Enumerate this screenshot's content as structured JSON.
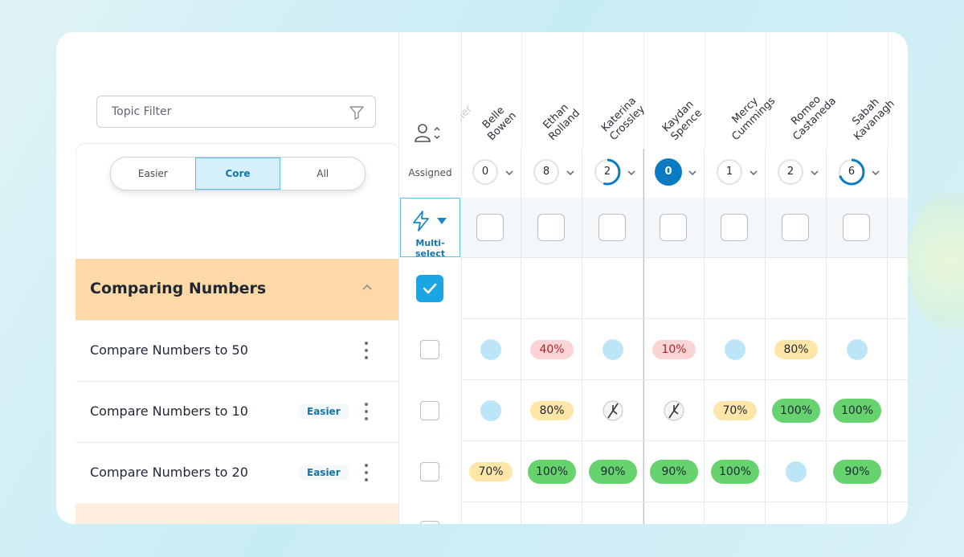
{
  "filter": {
    "placeholder": "Topic Filter"
  },
  "difficulty_tabs": [
    "Easier",
    "Core",
    "All"
  ],
  "assigned_column": {
    "label": "Assigned",
    "multi_select_label": "Multi-select"
  },
  "partial_student": "...her",
  "students": [
    {
      "name_line1": "Belle",
      "name_line2": "Bowen",
      "count": "0",
      "progress": 0
    },
    {
      "name_line1": "Ethan",
      "name_line2": "Rolland",
      "count": "8",
      "progress": 0
    },
    {
      "name_line1": "Katerina",
      "name_line2": "Crossley",
      "count": "2",
      "progress": 0.55
    },
    {
      "name_line1": "Kaydan",
      "name_line2": "Spence",
      "count": "0",
      "progress": 1
    },
    {
      "name_line1": "Mercy",
      "name_line2": "Cummings",
      "count": "1",
      "progress": 0
    },
    {
      "name_line1": "Romeo",
      "name_line2": "Castaneda",
      "count": "2",
      "progress": 0
    },
    {
      "name_line1": "Sabah",
      "name_line2": "Kavanagh",
      "count": "6",
      "progress": 0.7
    }
  ],
  "group": {
    "title": "Comparing Numbers"
  },
  "topics": [
    {
      "name": "Compare Numbers to 50",
      "badge": "",
      "cells": [
        "dot",
        "40%",
        "dot",
        "10%",
        "dot",
        "80%",
        "dot"
      ],
      "kinds": [
        "dot",
        "red",
        "dot",
        "red",
        "dot",
        "yellow",
        "dot"
      ]
    },
    {
      "name": "Compare Numbers to 10",
      "badge": "Easier",
      "cells": [
        "dot",
        "80%",
        "blocked",
        "blocked",
        "70%",
        "100%",
        "100%"
      ],
      "kinds": [
        "dot",
        "yellow",
        "blocked",
        "blocked",
        "yellow",
        "green",
        "green"
      ]
    },
    {
      "name": "Compare Numbers to 20",
      "badge": "Easier",
      "cells": [
        "70%",
        "100%",
        "90%",
        "90%",
        "100%",
        "dot",
        "90%"
      ],
      "kinds": [
        "yellow",
        "green",
        "green",
        "green",
        "green",
        "dot",
        "green"
      ]
    }
  ],
  "colors": {
    "accent": "#1ba5e3",
    "group_bg": "#fdd9a8",
    "green": "#67d36f",
    "yellow": "#fde6a7",
    "red": "#fbd4d6"
  }
}
